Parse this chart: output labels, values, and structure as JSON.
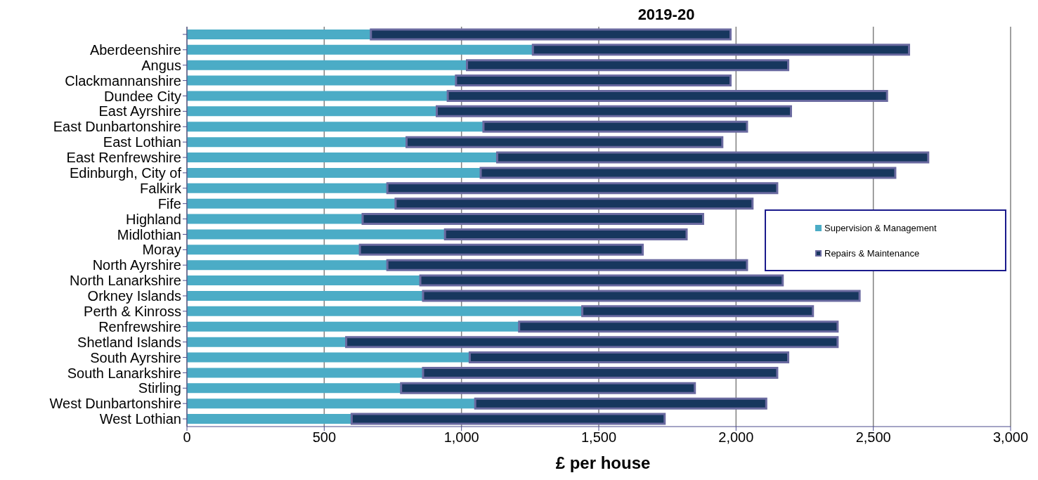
{
  "chart_data": {
    "type": "bar",
    "orientation": "horizontal",
    "stacked": true,
    "title": "2019-20",
    "xlabel": "£ per house",
    "categories": [
      null,
      "Aberdeenshire",
      "Angus",
      "Clackmannanshire",
      "Dundee City",
      "East Ayrshire",
      "East Dunbartonshire",
      "East Lothian",
      "East Renfrewshire",
      "Edinburgh, City of",
      "Falkirk",
      "Fife",
      "Highland",
      "Midlothian",
      "Moray",
      "North Ayrshire",
      "North Lanarkshire",
      "Orkney Islands",
      "Perth & Kinross",
      "Renfrewshire",
      "Shetland Islands",
      "South Ayrshire",
      "South Lanarkshire",
      "Stirling",
      "West Dunbartonshire",
      "West Lothian"
    ],
    "series": [
      {
        "name": "Supervision & Management",
        "color": "#4bacc6",
        "values": [
          670,
          1260,
          1020,
          980,
          950,
          910,
          1080,
          800,
          1130,
          1070,
          730,
          760,
          640,
          940,
          630,
          730,
          850,
          860,
          1440,
          1210,
          580,
          1030,
          860,
          780,
          1050,
          600
        ]
      },
      {
        "name": "Repairs & Maintenance",
        "color": "#17375e",
        "values": [
          1310,
          1370,
          1170,
          1000,
          1600,
          1290,
          960,
          1150,
          1570,
          1510,
          1420,
          1300,
          1240,
          880,
          1030,
          1310,
          1320,
          1590,
          840,
          1160,
          1790,
          1160,
          1290,
          1070,
          1060,
          1140
        ]
      }
    ],
    "xlim": [
      0,
      3000
    ],
    "xticks": [
      0,
      500,
      {
        "value": 1000,
        "label": "1,000"
      },
      {
        "value": 1500,
        "label": "1,500"
      },
      {
        "value": 2000,
        "label": "2,000"
      },
      {
        "value": 2500,
        "label": "2,500"
      },
      {
        "value": 3000,
        "label": "3,000"
      }
    ],
    "grid": "x",
    "legend": "right"
  }
}
